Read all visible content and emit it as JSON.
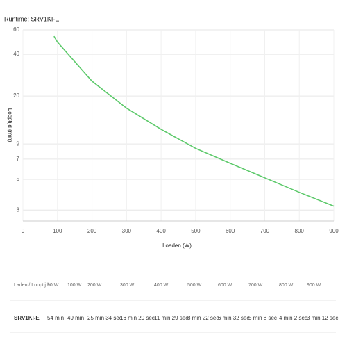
{
  "chart_data": {
    "type": "line",
    "title": "Runtime: SRV1KI-E",
    "x": [
      90,
      100,
      200,
      300,
      400,
      500,
      600,
      700,
      800,
      900
    ],
    "series": [
      {
        "color": "#5cc96a",
        "values": [
          54,
          49,
          25.57,
          16.33,
          11.48,
          8.37,
          6.53,
          5.13,
          4.03,
          3.2
        ]
      }
    ],
    "xlim": [
      0,
      900
    ],
    "xticks": [
      0,
      100,
      200,
      300,
      400,
      500,
      600,
      700,
      800,
      900
    ],
    "ylim": [
      2.5,
      60
    ],
    "yticks": [
      3,
      5,
      7,
      9,
      20,
      40,
      60
    ],
    "ylog": true,
    "grid": true,
    "xlabel": "Loaden (W)",
    "ylabel": "Looptijd (min)"
  },
  "table": {
    "header": [
      "Laden / Looptijd",
      "90 W",
      "100 W",
      "200 W",
      "300 W",
      "400 W",
      "500 W",
      "600 W",
      "700 W",
      "800 W",
      "900 W"
    ],
    "rows": [
      [
        "SRV1KI-E",
        "54 min",
        "49 min",
        "25 min 34 sec",
        "16 min 20 sec",
        "11 min 29 sec",
        "8 min 22 sec",
        "6 min 32 sec",
        "5 min 8 sec",
        "4 min 2 sec",
        "3 min 12 sec"
      ]
    ]
  }
}
